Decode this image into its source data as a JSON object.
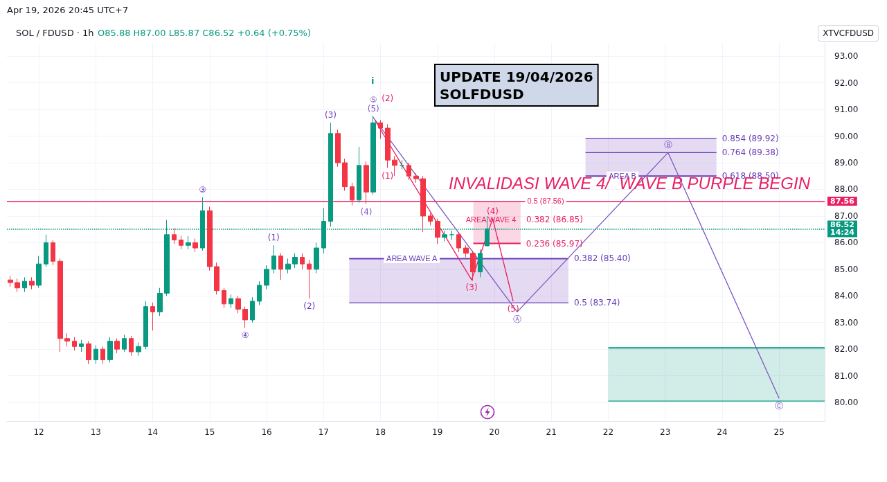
{
  "chart_data": {
    "type": "candlestick",
    "title": "SOL / FDUSD · 1h",
    "subtitle": "O85.88 H87.00 L85.87 C86.52 +0.64 (+0.75%)",
    "xlim": [
      11.44,
      25.8
    ],
    "xticks": [
      12,
      13,
      14,
      15,
      16,
      17,
      18,
      19,
      20,
      21,
      22,
      23,
      24,
      25
    ],
    "ylim": [
      79.3,
      93.5
    ],
    "yticks": [
      {
        "value": 80,
        "label": "80.00"
      },
      {
        "value": 81,
        "label": "81.00"
      },
      {
        "value": 82,
        "label": "82.00"
      },
      {
        "value": 83,
        "label": "83.00"
      },
      {
        "value": 84,
        "label": "84.00"
      },
      {
        "value": 85,
        "label": "85.00"
      },
      {
        "value": 86,
        "label": "86.00"
      },
      {
        "value": 87,
        "label": "87.00"
      },
      {
        "value": 88,
        "label": "88.00"
      },
      {
        "value": 89,
        "label": "89.00"
      },
      {
        "value": 90,
        "label": "90.00"
      },
      {
        "value": 91,
        "label": "91.00"
      },
      {
        "value": 92,
        "label": "92.00"
      },
      {
        "value": 93,
        "label": "93.00"
      }
    ],
    "grid": true,
    "series": [
      {
        "x": [
          11.5,
          11.625,
          11.75,
          11.875,
          12.0,
          12.125,
          12.25,
          12.375,
          12.5,
          12.625,
          12.75,
          12.875,
          13.0,
          13.125,
          13.25,
          13.375,
          13.5,
          13.625,
          13.75,
          13.875,
          14.0,
          14.125,
          14.25,
          14.375,
          14.5,
          14.625,
          14.75,
          14.875,
          15.0,
          15.125,
          15.25,
          15.375,
          15.5,
          15.625,
          15.75,
          15.875,
          16.0,
          16.125,
          16.25,
          16.375,
          16.5,
          16.625,
          16.75,
          16.875,
          17.0,
          17.125,
          17.25,
          17.375,
          17.5,
          17.625,
          17.75,
          17.875,
          18.0,
          18.125,
          18.25,
          18.375,
          18.5,
          18.625,
          18.75,
          18.875,
          19.0,
          19.125,
          19.25,
          19.375,
          19.5,
          19.625,
          19.75,
          19.875
        ],
        "ohlc": [
          [
            84.6,
            84.75,
            84.35,
            84.5
          ],
          [
            84.5,
            84.65,
            84.15,
            84.3
          ],
          [
            84.3,
            84.7,
            84.15,
            84.55
          ],
          [
            84.55,
            84.7,
            84.25,
            84.4
          ],
          [
            84.4,
            85.5,
            84.3,
            85.2
          ],
          [
            85.2,
            86.3,
            85.1,
            86.0
          ],
          [
            86.0,
            86.1,
            85.15,
            85.3
          ],
          [
            85.3,
            85.4,
            81.9,
            82.4
          ],
          [
            82.4,
            82.6,
            82.1,
            82.3
          ],
          [
            82.3,
            82.45,
            81.95,
            82.1
          ],
          [
            82.1,
            82.35,
            81.9,
            82.2
          ],
          [
            82.2,
            82.3,
            81.44,
            81.6
          ],
          [
            81.6,
            82.15,
            81.45,
            82.0
          ],
          [
            82.0,
            82.1,
            81.45,
            81.6
          ],
          [
            81.6,
            82.45,
            81.5,
            82.3
          ],
          [
            82.3,
            82.4,
            81.85,
            82.0
          ],
          [
            82.0,
            82.55,
            81.9,
            82.4
          ],
          [
            82.4,
            82.5,
            81.75,
            81.9
          ],
          [
            81.9,
            82.25,
            81.75,
            82.1
          ],
          [
            82.1,
            83.8,
            82.0,
            83.6
          ],
          [
            83.6,
            83.75,
            82.7,
            83.4
          ],
          [
            83.4,
            84.3,
            83.25,
            84.1
          ],
          [
            84.1,
            86.85,
            84.0,
            86.3
          ],
          [
            86.3,
            86.55,
            85.95,
            86.1
          ],
          [
            86.1,
            86.25,
            85.75,
            85.9
          ],
          [
            85.9,
            86.25,
            85.75,
            86.0
          ],
          [
            86.0,
            86.15,
            85.65,
            85.8
          ],
          [
            85.8,
            87.7,
            85.7,
            87.2
          ],
          [
            87.2,
            87.35,
            84.95,
            85.1
          ],
          [
            85.1,
            85.25,
            84.05,
            84.2
          ],
          [
            84.2,
            84.3,
            83.55,
            83.7
          ],
          [
            83.7,
            84.05,
            83.55,
            83.9
          ],
          [
            83.9,
            84.0,
            83.35,
            83.5
          ],
          [
            83.5,
            83.6,
            82.8,
            83.1
          ],
          [
            83.1,
            83.95,
            83.0,
            83.8
          ],
          [
            83.8,
            84.55,
            83.65,
            84.4
          ],
          [
            84.4,
            85.15,
            84.25,
            85.0
          ],
          [
            85.0,
            85.9,
            84.85,
            85.5
          ],
          [
            85.5,
            85.6,
            84.6,
            85.0
          ],
          [
            85.0,
            85.4,
            84.85,
            85.2
          ],
          [
            85.2,
            85.6,
            85.05,
            85.45
          ],
          [
            85.45,
            85.6,
            85.0,
            85.2
          ],
          [
            85.2,
            85.35,
            83.9,
            85.0
          ],
          [
            85.0,
            86.0,
            84.85,
            85.8
          ],
          [
            85.8,
            87.3,
            85.6,
            86.8
          ],
          [
            86.8,
            90.5,
            86.6,
            90.1
          ],
          [
            90.1,
            90.25,
            88.85,
            89.0
          ],
          [
            89.0,
            89.15,
            87.95,
            88.1
          ],
          [
            88.1,
            88.25,
            87.4,
            87.6
          ],
          [
            87.6,
            89.6,
            87.5,
            88.9
          ],
          [
            88.9,
            89.05,
            87.45,
            87.9
          ],
          [
            87.9,
            90.74,
            87.8,
            90.5
          ],
          [
            90.5,
            90.6,
            89.9,
            90.3
          ],
          [
            90.3,
            90.45,
            88.8,
            89.1
          ],
          [
            89.1,
            89.25,
            88.5,
            88.9
          ],
          [
            88.9,
            89.1,
            88.75,
            88.9
          ],
          [
            88.9,
            89.0,
            88.35,
            88.5
          ],
          [
            88.5,
            88.6,
            88.25,
            88.4
          ],
          [
            88.4,
            88.5,
            86.4,
            87.0
          ],
          [
            87.0,
            87.1,
            86.65,
            86.8
          ],
          [
            86.8,
            86.9,
            85.95,
            86.2
          ],
          [
            86.2,
            86.45,
            86.05,
            86.3
          ],
          [
            86.3,
            86.45,
            86.1,
            86.3
          ],
          [
            86.3,
            86.4,
            85.65,
            85.8
          ],
          [
            85.8,
            85.9,
            85.45,
            85.6
          ],
          [
            85.6,
            85.7,
            84.57,
            84.9
          ],
          [
            84.9,
            85.75,
            84.7,
            85.6
          ],
          [
            85.88,
            87.0,
            85.87,
            86.52
          ]
        ],
        "colors": [
          "#f23645",
          "#f23645",
          "#089981",
          "#f23645",
          "#089981",
          "#089981",
          "#f23645",
          "#f23645",
          "#f23645",
          "#f23645",
          "#089981",
          "#f23645",
          "#089981",
          "#f23645",
          "#089981",
          "#f23645",
          "#089981",
          "#f23645",
          "#089981",
          "#089981",
          "#f23645",
          "#089981",
          "#089981",
          "#f23645",
          "#f23645",
          "#089981",
          "#f23645",
          "#089981",
          "#f23645",
          "#f23645",
          "#f23645",
          "#089981",
          "#f23645",
          "#f23645",
          "#089981",
          "#089981",
          "#089981",
          "#089981",
          "#f23645",
          "#089981",
          "#089981",
          "#f23645",
          "#f23645",
          "#089981",
          "#089981",
          "#089981",
          "#f23645",
          "#f23645",
          "#f23645",
          "#089981",
          "#f23645",
          "#089981",
          "#f23645",
          "#f23645",
          "#f23645",
          "#089981",
          "#f23645",
          "#f23645",
          "#f23645",
          "#f23645",
          "#f23645",
          "#089981",
          "#089981",
          "#f23645",
          "#f23645",
          "#f23645",
          "#089981",
          "#089981"
        ]
      },
      {
        "type": "line",
        "color": "#673ab7",
        "name": "0.382 (85.40)",
        "x": [
          17.45,
          21.3
        ],
        "values": [
          85.4,
          85.4
        ],
        "lower": [
          83.74,
          83.74
        ],
        "upper": [
          85.4,
          85.4
        ]
      },
      {
        "type": "line",
        "color": "#673ab7",
        "name": "0.5 (83.74)",
        "x": [
          17.45,
          21.3
        ],
        "values": [
          83.74,
          83.74
        ]
      },
      {
        "type": "line",
        "color": "#e91e63",
        "name": "0.236 (85.97)",
        "x": [
          19.63,
          20.46
        ],
        "values": [
          85.97,
          85.97
        ],
        "lower": [
          85.97,
          85.97
        ],
        "upper": [
          87.56,
          87.56
        ]
      },
      {
        "type": "line",
        "color": "#673ab7",
        "name": "0.854 (89.92)",
        "x": [
          21.6,
          23.9
        ],
        "values": [
          89.92,
          89.92
        ]
      },
      {
        "type": "line",
        "color": "#673ab7",
        "name": "0.764 (89.38)",
        "x": [
          21.6,
          23.9
        ],
        "values": [
          89.38,
          89.38
        ]
      },
      {
        "type": "line",
        "color": "#673ab7",
        "name": "0.618 (88.50)",
        "x": [
          21.6,
          23.9
        ],
        "values": [
          88.5,
          88.5
        ],
        "lower": [
          88.5,
          88.5
        ],
        "upper": [
          89.92,
          89.92
        ]
      },
      {
        "type": "line",
        "color": "#089981",
        "x": [
          22.0,
          25.8
        ],
        "values": [
          82.05,
          82.05
        ],
        "lower": [
          80.05,
          80.05
        ],
        "upper": [
          82.05,
          82.05
        ]
      },
      {
        "type": "line",
        "color": "#089981",
        "x": [
          22.0,
          25.8
        ],
        "values": [
          80.05,
          80.05
        ]
      },
      {
        "type": "line",
        "color": "#7e57c2",
        "x": [
          17.86,
          20.4,
          23.05,
          25.0
        ],
        "values": [
          90.74,
          83.4,
          89.38,
          80.15
        ]
      },
      {
        "type": "line",
        "color": "#e91e63",
        "x": [
          17.9,
          19.6,
          19.97,
          20.33
        ],
        "values": [
          90.6,
          84.6,
          86.9,
          83.8
        ]
      }
    ],
    "ref_lines": [
      {
        "axis": "y",
        "value": 87.56,
        "label": "87.56",
        "color": "#e91e63"
      },
      {
        "axis": "y",
        "value": 86.52,
        "label": "86.52\n14:24",
        "color": "#089981",
        "line_style": "dotted"
      }
    ],
    "annotations": [
      "Apr 19, 2026 20:45 UTC+7",
      "XTVCFDUSD",
      "UPDATE 19/04/2026\nSOLFDUSD",
      "INVALIDASI WAVE 4/  WAVE B PURPLE BEGIN",
      "i",
      "AREA WAVE 4",
      "0.382 (86.85)",
      {
        "text": "0.5 (87.56)",
        "x": 20.9,
        "y": 87.56
      },
      {
        "text": "AREA WAVE A",
        "x": 18.55,
        "y": 85.4
      },
      {
        "text": "AREA B",
        "x": 22.25,
        "y": 88.5
      },
      {
        "text": "③",
        "x": 14.875,
        "y": 87.7
      },
      {
        "text": "④",
        "x": 15.625,
        "y": 82.8
      },
      {
        "text": "(5)",
        "x": 17.875,
        "y": 90.74
      },
      {
        "text": "⑤",
        "x": 17.875,
        "y": 90.74
      },
      {
        "text": "(1)",
        "x": 16.125,
        "y": 85.9
      },
      {
        "text": "(2)",
        "x": 16.75,
        "y": 83.9
      },
      {
        "text": "(3)",
        "x": 17.125,
        "y": 90.5
      },
      {
        "text": "(4)",
        "x": 17.75,
        "y": 87.45
      },
      {
        "text": "(2)",
        "x": 18.125,
        "y": 90.45
      },
      {
        "text": "(1)",
        "x": 18.125,
        "y": 88.8
      },
      {
        "text": "(3)",
        "x": 19.6,
        "y": 84.6
      },
      {
        "text": "(4)",
        "x": 19.97,
        "y": 86.9
      },
      {
        "text": "(5)",
        "x": 20.33,
        "y": 83.8
      },
      {
        "text": "Ⓐ",
        "x": 20.4,
        "y": 83.4
      },
      {
        "text": "Ⓑ",
        "x": 23.05,
        "y": 89.38
      },
      {
        "text": "Ⓒ",
        "x": 25.0,
        "y": 80.15
      }
    ]
  }
}
